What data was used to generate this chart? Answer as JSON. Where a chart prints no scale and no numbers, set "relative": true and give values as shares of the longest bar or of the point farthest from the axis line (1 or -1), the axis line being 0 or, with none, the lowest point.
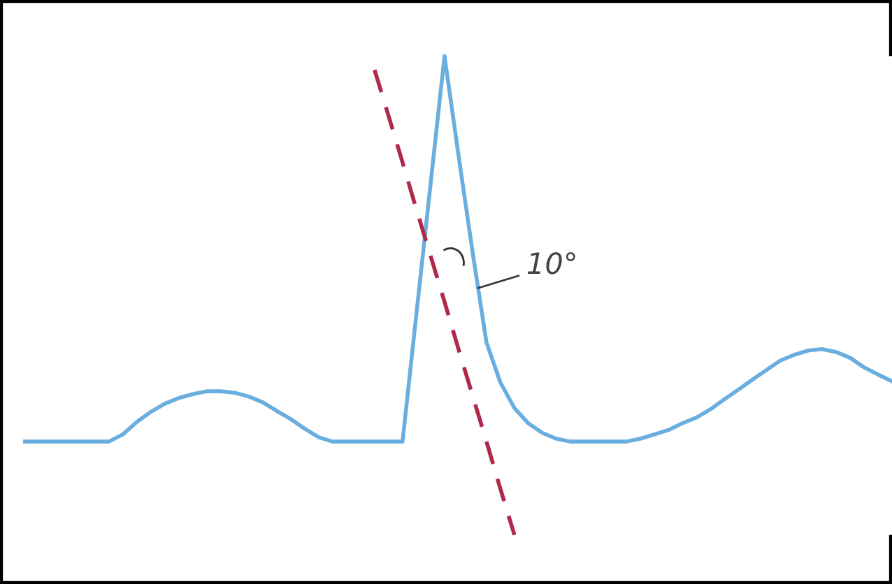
{
  "chart_data": {
    "type": "line",
    "relative": true,
    "grid": false,
    "legend": false,
    "marker": "none",
    "annotations": [
      "10°"
    ],
    "categories": [
      null,
      null,
      null,
      null,
      null,
      null,
      null,
      null,
      null,
      null,
      null,
      null,
      null,
      null,
      null,
      null,
      null,
      null,
      null,
      null,
      null,
      null,
      null,
      null,
      null,
      null,
      null,
      null,
      null,
      null,
      null,
      null,
      null,
      null,
      null,
      null,
      null,
      null,
      null,
      null,
      null,
      null,
      null,
      null,
      null,
      null,
      null,
      null,
      null,
      null,
      null,
      null,
      null,
      null,
      null,
      null,
      null,
      null,
      null,
      null,
      null,
      null,
      null
    ],
    "series": [
      {
        "color": "#6aaee0",
        "line_style": "solid",
        "values": [
          0.195,
          0.195,
          0.195,
          0.195,
          0.195,
          0.195,
          0.195,
          0.21,
          0.236,
          0.257,
          0.274,
          0.286,
          0.294,
          0.3,
          0.3,
          0.297,
          0.289,
          0.277,
          0.259,
          0.242,
          0.222,
          0.204,
          0.195,
          0.195,
          0.195,
          0.195,
          0.195,
          0.195,
          0.464,
          0.732,
          1,
          0.793,
          0.592,
          0.402,
          0.318,
          0.265,
          0.233,
          0.213,
          0.201,
          0.195,
          0.195,
          0.195,
          0.195,
          0.195,
          0.201,
          0.21,
          0.219,
          0.233,
          0.245,
          0.262,
          0.283,
          0.303,
          0.324,
          0.344,
          0.364,
          0.376,
          0.385,
          0.388,
          0.382,
          0.37,
          0.35,
          0.335,
          0.321
        ]
      },
      {
        "color": "#b0284a",
        "line_style": "dashed",
        "values": [
          null,
          null,
          null,
          null,
          null,
          null,
          null,
          null,
          null,
          null,
          null,
          null,
          null,
          null,
          null,
          null,
          null,
          null,
          null,
          null,
          null,
          null,
          null,
          null,
          null,
          0.971,
          0.875,
          0.778,
          0.679,
          0.583,
          0.487,
          0.388,
          0.292,
          0.195,
          0.096,
          0,
          null,
          null,
          null,
          null,
          null,
          null,
          null,
          null,
          null,
          null,
          null,
          null,
          null,
          null,
          null,
          null,
          null,
          null,
          null,
          null,
          null,
          null,
          null,
          null,
          null,
          null,
          null
        ]
      }
    ]
  }
}
